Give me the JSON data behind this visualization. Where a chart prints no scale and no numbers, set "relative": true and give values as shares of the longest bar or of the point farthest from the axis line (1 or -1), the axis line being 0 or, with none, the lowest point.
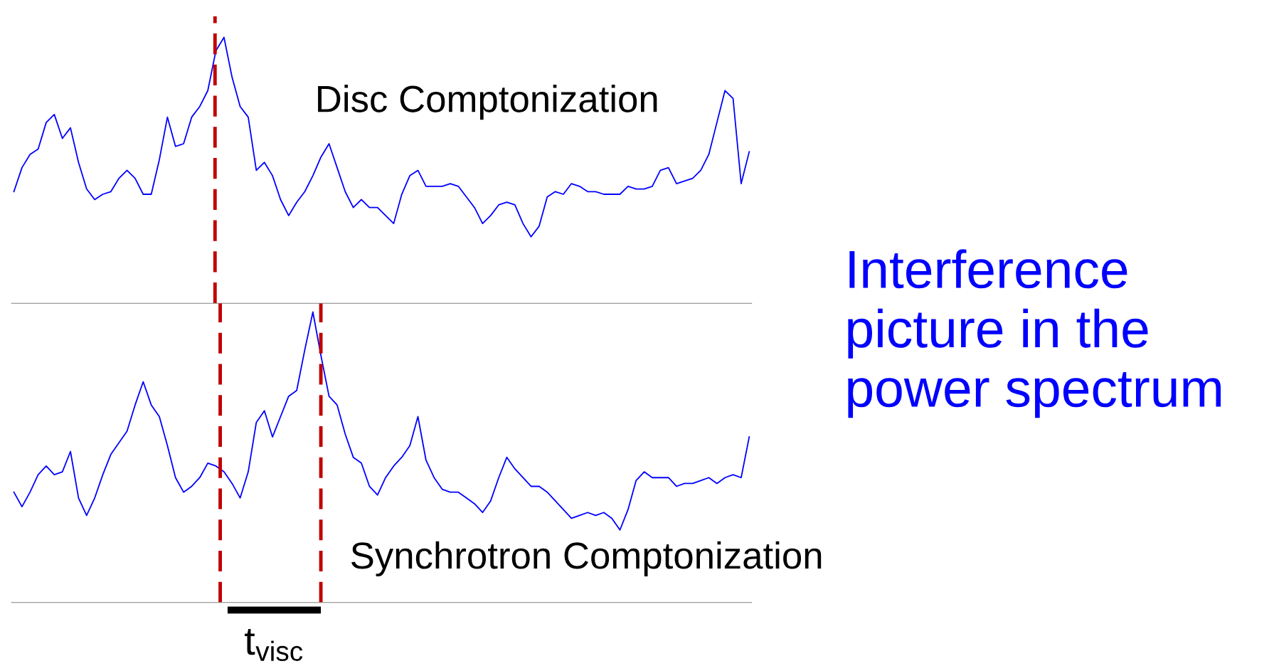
{
  "chart_data": [
    {
      "type": "line",
      "relative": true,
      "categories": [
        null,
        null,
        null,
        null,
        null,
        null,
        null,
        null,
        null,
        null,
        null,
        null,
        null,
        null,
        null,
        null,
        null,
        null,
        null,
        null,
        null,
        null,
        null,
        null,
        null,
        null,
        null,
        null,
        null,
        null,
        null,
        null,
        null,
        null,
        null,
        null,
        null,
        null,
        null,
        null,
        null,
        null,
        null,
        null,
        null,
        null,
        null,
        null,
        null,
        null,
        null,
        null,
        null,
        null,
        null,
        null,
        null,
        null,
        null,
        null,
        null,
        null,
        null,
        null,
        null,
        null,
        null,
        null,
        null,
        null,
        null,
        null,
        null,
        null,
        null,
        null,
        null,
        null,
        null,
        null,
        null,
        null,
        null,
        null,
        null,
        null,
        null,
        null,
        null,
        null,
        null,
        null
      ],
      "series": [
        {
          "color": "#0000ff",
          "values": [
            0.42,
            0.51,
            0.56,
            0.58,
            0.68,
            0.71,
            0.62,
            0.66,
            0.53,
            0.43,
            0.39,
            0.41,
            0.42,
            0.47,
            0.5,
            0.47,
            0.41,
            0.41,
            0.54,
            0.7,
            0.59,
            0.6,
            0.7,
            0.74,
            0.8,
            0.95,
            1.0,
            0.85,
            0.74,
            0.7,
            0.5,
            0.53,
            0.48,
            0.39,
            0.33,
            0.38,
            0.42,
            0.48,
            0.55,
            0.6,
            0.51,
            0.42,
            0.36,
            0.39,
            0.36,
            0.36,
            0.33,
            0.3,
            0.41,
            0.48,
            0.5,
            0.44,
            0.44,
            0.44,
            0.45,
            0.44,
            0.4,
            0.36,
            0.3,
            0.33,
            0.37,
            0.38,
            0.37,
            0.3,
            0.25,
            0.29,
            0.4,
            0.42,
            0.41,
            0.45,
            0.44,
            0.42,
            0.42,
            0.41,
            0.41,
            0.41,
            0.44,
            0.43,
            0.43,
            0.44,
            0.5,
            0.51,
            0.45,
            0.46,
            0.47,
            0.5,
            0.56,
            0.68,
            0.8,
            0.77,
            0.45,
            0.57
          ]
        }
      ],
      "line_style": "solid",
      "marker": "none",
      "annotations": [
        "Disc Comptonization"
      ]
    },
    {
      "type": "line",
      "relative": true,
      "categories": [
        null,
        null,
        null,
        null,
        null,
        null,
        null,
        null,
        null,
        null,
        null,
        null,
        null,
        null,
        null,
        null,
        null,
        null,
        null,
        null,
        null,
        null,
        null,
        null,
        null,
        null,
        null,
        null,
        null,
        null,
        null,
        null,
        null,
        null,
        null,
        null,
        null,
        null,
        null,
        null,
        null,
        null,
        null,
        null,
        null,
        null,
        null,
        null,
        null,
        null,
        null,
        null,
        null,
        null,
        null,
        null,
        null,
        null,
        null,
        null,
        null,
        null,
        null,
        null,
        null,
        null,
        null,
        null,
        null,
        null,
        null,
        null,
        null,
        null,
        null,
        null,
        null,
        null,
        null,
        null,
        null,
        null,
        null,
        null,
        null,
        null,
        null,
        null,
        null,
        null,
        null,
        null
      ],
      "series": [
        {
          "color": "#0000ff",
          "values": [
            0.38,
            0.33,
            0.38,
            0.44,
            0.47,
            0.44,
            0.45,
            0.52,
            0.36,
            0.3,
            0.36,
            0.44,
            0.51,
            0.55,
            0.59,
            0.68,
            0.76,
            0.68,
            0.64,
            0.54,
            0.43,
            0.38,
            0.4,
            0.43,
            0.48,
            0.47,
            0.45,
            0.41,
            0.36,
            0.45,
            0.62,
            0.66,
            0.57,
            0.64,
            0.71,
            0.73,
            0.87,
            1.0,
            0.85,
            0.71,
            0.68,
            0.58,
            0.5,
            0.48,
            0.4,
            0.37,
            0.43,
            0.47,
            0.5,
            0.54,
            0.64,
            0.49,
            0.43,
            0.39,
            0.38,
            0.38,
            0.36,
            0.34,
            0.31,
            0.35,
            0.43,
            0.5,
            0.46,
            0.43,
            0.4,
            0.4,
            0.38,
            0.35,
            0.32,
            0.29,
            0.3,
            0.31,
            0.3,
            0.31,
            0.29,
            0.25,
            0.32,
            0.42,
            0.45,
            0.43,
            0.43,
            0.43,
            0.4,
            0.41,
            0.41,
            0.42,
            0.43,
            0.41,
            0.43,
            0.44,
            0.43,
            0.57
          ]
        }
      ],
      "line_style": "solid",
      "marker": "none",
      "annotations": [
        "Synchrotron Comptonization",
        "Interference\npicture in the\npower spectrum",
        "t$_{visc}$"
      ]
    }
  ]
}
